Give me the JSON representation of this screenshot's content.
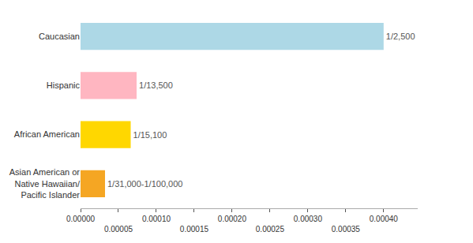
{
  "chart_data": {
    "type": "bar",
    "orientation": "horizontal",
    "categories": [
      "Asian American or\nNative Hawaiian/\nPacific Islander",
      "African American",
      "Hispanic",
      "Caucasian"
    ],
    "values": [
      3.23e-05,
      6.62e-05,
      7.4e-05,
      0.0004
    ],
    "value_labels": [
      "1/31,000-1/100,000",
      "1/15,100",
      "1/13,500",
      "1/2,500"
    ],
    "data_labels": true,
    "colors": [
      "#F5A623",
      "#FFD700",
      "#FFB6C1",
      "#ADD8E6"
    ],
    "xlim": [
      0,
      0.000445
    ],
    "xticks": [
      {
        "value": 0.0,
        "label": "0.00000"
      },
      {
        "value": 5e-05,
        "label": "0.00005"
      },
      {
        "value": 0.0001,
        "label": "0.00010"
      },
      {
        "value": 0.00015,
        "label": "0.00015"
      },
      {
        "value": 0.0002,
        "label": "0.00020"
      },
      {
        "value": 0.00025,
        "label": "0.00025"
      },
      {
        "value": 0.0003,
        "label": "0.00030"
      },
      {
        "value": 0.00035,
        "label": "0.00035"
      },
      {
        "value": 0.0004,
        "label": "0.00040"
      }
    ],
    "grid": false
  }
}
